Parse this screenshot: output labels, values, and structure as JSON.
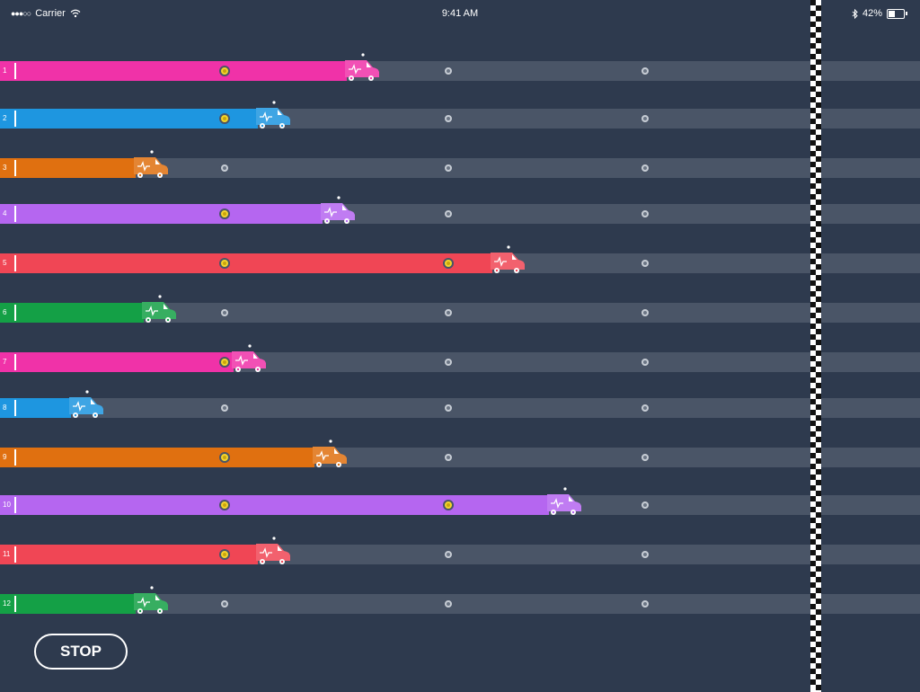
{
  "status_bar": {
    "carrier": "Carrier",
    "time": "9:41 AM",
    "battery_percent": "42%",
    "battery_level": 0.42
  },
  "race": {
    "checkpoint_count": 3,
    "lanes": [
      {
        "number": "1",
        "color": "#f032a8",
        "progress": 0.45,
        "checkpoints_reached": 1
      },
      {
        "number": "2",
        "color": "#1e96e0",
        "progress": 0.34,
        "checkpoints_reached": 1
      },
      {
        "number": "3",
        "color": "#e07010",
        "progress": 0.19,
        "checkpoints_reached": 0
      },
      {
        "number": "4",
        "color": "#b566f0",
        "progress": 0.42,
        "checkpoints_reached": 1
      },
      {
        "number": "5",
        "color": "#f04655",
        "progress": 0.63,
        "checkpoints_reached": 2
      },
      {
        "number": "6",
        "color": "#14a046",
        "progress": 0.2,
        "checkpoints_reached": 0
      },
      {
        "number": "7",
        "color": "#f032a8",
        "progress": 0.31,
        "checkpoints_reached": 1
      },
      {
        "number": "8",
        "color": "#1e96e0",
        "progress": 0.11,
        "checkpoints_reached": 0
      },
      {
        "number": "9",
        "color": "#e07010",
        "progress": 0.41,
        "checkpoints_reached": 1
      },
      {
        "number": "10",
        "color": "#b566f0",
        "progress": 0.7,
        "checkpoints_reached": 2
      },
      {
        "number": "11",
        "color": "#f04655",
        "progress": 0.34,
        "checkpoints_reached": 1
      },
      {
        "number": "12",
        "color": "#14a046",
        "progress": 0.19,
        "checkpoints_reached": 0
      }
    ]
  },
  "stop_button": {
    "label": "STOP"
  }
}
